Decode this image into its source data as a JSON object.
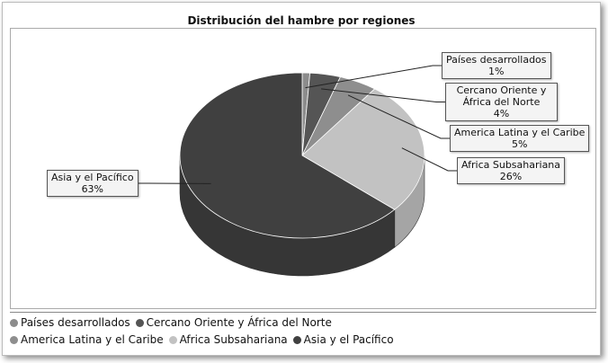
{
  "chart_data": {
    "type": "pie",
    "title": "Distribución del hambre por regiones",
    "categories": [
      "Países desarrollados",
      "Cercano Oriente y África del Norte",
      "America Latina y el Caribe",
      "Africa Subsahariana",
      "Asia y el Pacífico"
    ],
    "values": [
      1,
      4,
      5,
      26,
      63
    ],
    "value_labels": [
      "1%",
      "4%",
      "5%",
      "26%",
      "63%"
    ],
    "colors": [
      "#8c8c8c",
      "#555555",
      "#8e8e8e",
      "#c2c2c2",
      "#404040"
    ]
  }
}
